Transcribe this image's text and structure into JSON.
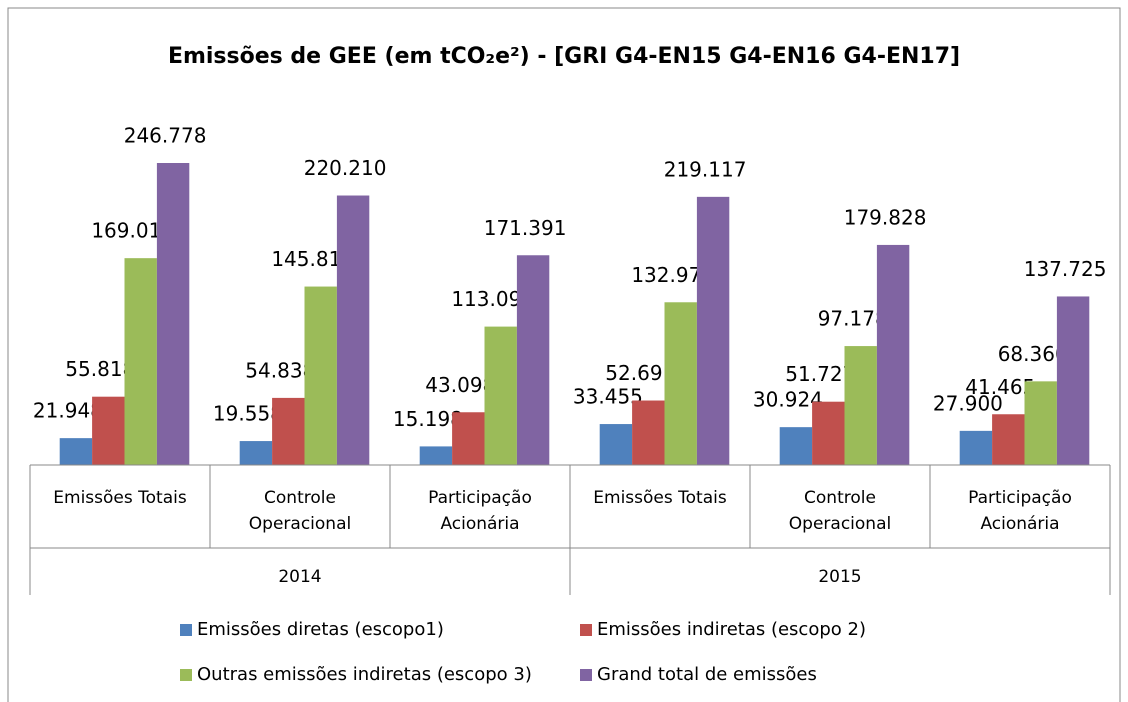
{
  "chart_data": {
    "type": "bar",
    "title": "Emissões de GEE (em tCO₂e²) - [GRI G4-EN15 G4-EN16 G4-EN17]",
    "categories": [
      "Emissões Totais",
      "Controle\nOperacional",
      "Participação\nAcionária",
      "Emissões Totais",
      "Controle\nOperacional",
      "Participação\nAcionária"
    ],
    "groups": [
      "2014",
      "2015"
    ],
    "series": [
      {
        "name": "Emissões diretas (escopo1)",
        "color": "#4f81bd",
        "values": [
          21948,
          19558,
          15198,
          33455,
          30924,
          27900
        ],
        "value_labels": [
          "21.948",
          "19.558",
          "15.198",
          "33.455",
          "30.924",
          "27.900"
        ]
      },
      {
        "name": "Emissões indiretas (escopo 2)",
        "color": "#c0504d",
        "values": [
          55818,
          54838,
          43098,
          52691,
          51727,
          41465
        ],
        "value_labels": [
          "55.818",
          "54.838",
          "43.098",
          "52.691",
          "51.727",
          "41.465"
        ]
      },
      {
        "name": "Outras emissões indiretas (escopo 3)",
        "color": "#9bbb59",
        "values": [
          169012,
          145814,
          113095,
          132971,
          97178,
          68360
        ],
        "value_labels": [
          "169.012",
          "145.814",
          "113.095",
          "132.971",
          "97.178",
          "68.360"
        ]
      },
      {
        "name": "Grand total de emissões",
        "color": "#8064a2",
        "values": [
          246778,
          220210,
          171391,
          219117,
          179828,
          137725
        ],
        "value_labels": [
          "246.778",
          "220.210",
          "171.391",
          "219.117",
          "179.828",
          "137.725"
        ]
      }
    ]
  }
}
